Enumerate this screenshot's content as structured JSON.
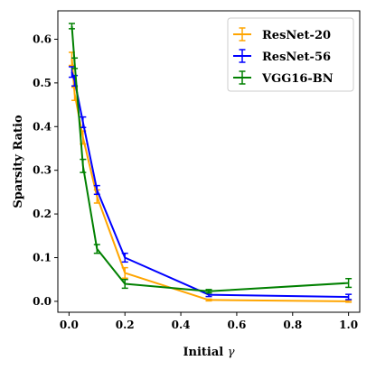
{
  "chart_data": {
    "type": "line",
    "title": "",
    "xlabel": "Initial",
    "xlabel_symbol": "γ",
    "ylabel": "Sparsity Ratio",
    "xlim": [
      -0.04,
      1.04
    ],
    "ylim": [
      -0.025,
      0.665
    ],
    "x_ticks": [
      0.0,
      0.2,
      0.4,
      0.6,
      0.8,
      1.0
    ],
    "x_tick_labels": [
      "0.0",
      "0.2",
      "0.4",
      "0.6",
      "0.8",
      "1.0"
    ],
    "y_ticks": [
      0.0,
      0.1,
      0.2,
      0.3,
      0.4,
      0.5,
      0.6
    ],
    "y_tick_labels": [
      "0.0",
      "0.1",
      "0.2",
      "0.3",
      "0.4",
      "0.5",
      "0.6"
    ],
    "grid": false,
    "legend_position": "top-right",
    "series": [
      {
        "name": "ResNet-20",
        "color": "#FFA500",
        "x": [
          0.01,
          0.02,
          0.05,
          0.1,
          0.2,
          0.5,
          1.0
        ],
        "y": [
          0.555,
          0.475,
          0.375,
          0.24,
          0.065,
          0.003,
          0.0
        ],
        "err": [
          0.015,
          0.015,
          0.015,
          0.015,
          0.012,
          0.002,
          0.002
        ]
      },
      {
        "name": "ResNet-56",
        "color": "#0000FF",
        "x": [
          0.01,
          0.02,
          0.05,
          0.1,
          0.2,
          0.5,
          1.0
        ],
        "y": [
          0.525,
          0.505,
          0.41,
          0.255,
          0.1,
          0.015,
          0.01
        ],
        "err": [
          0.012,
          0.012,
          0.012,
          0.01,
          0.01,
          0.004,
          0.006
        ]
      },
      {
        "name": "VGG16-BN",
        "color": "#008000",
        "x": [
          0.01,
          0.02,
          0.05,
          0.1,
          0.2,
          0.5,
          1.0
        ],
        "y": [
          0.63,
          0.545,
          0.31,
          0.12,
          0.04,
          0.023,
          0.042
        ],
        "err": [
          0.006,
          0.012,
          0.015,
          0.01,
          0.01,
          0.004,
          0.01
        ]
      }
    ]
  }
}
